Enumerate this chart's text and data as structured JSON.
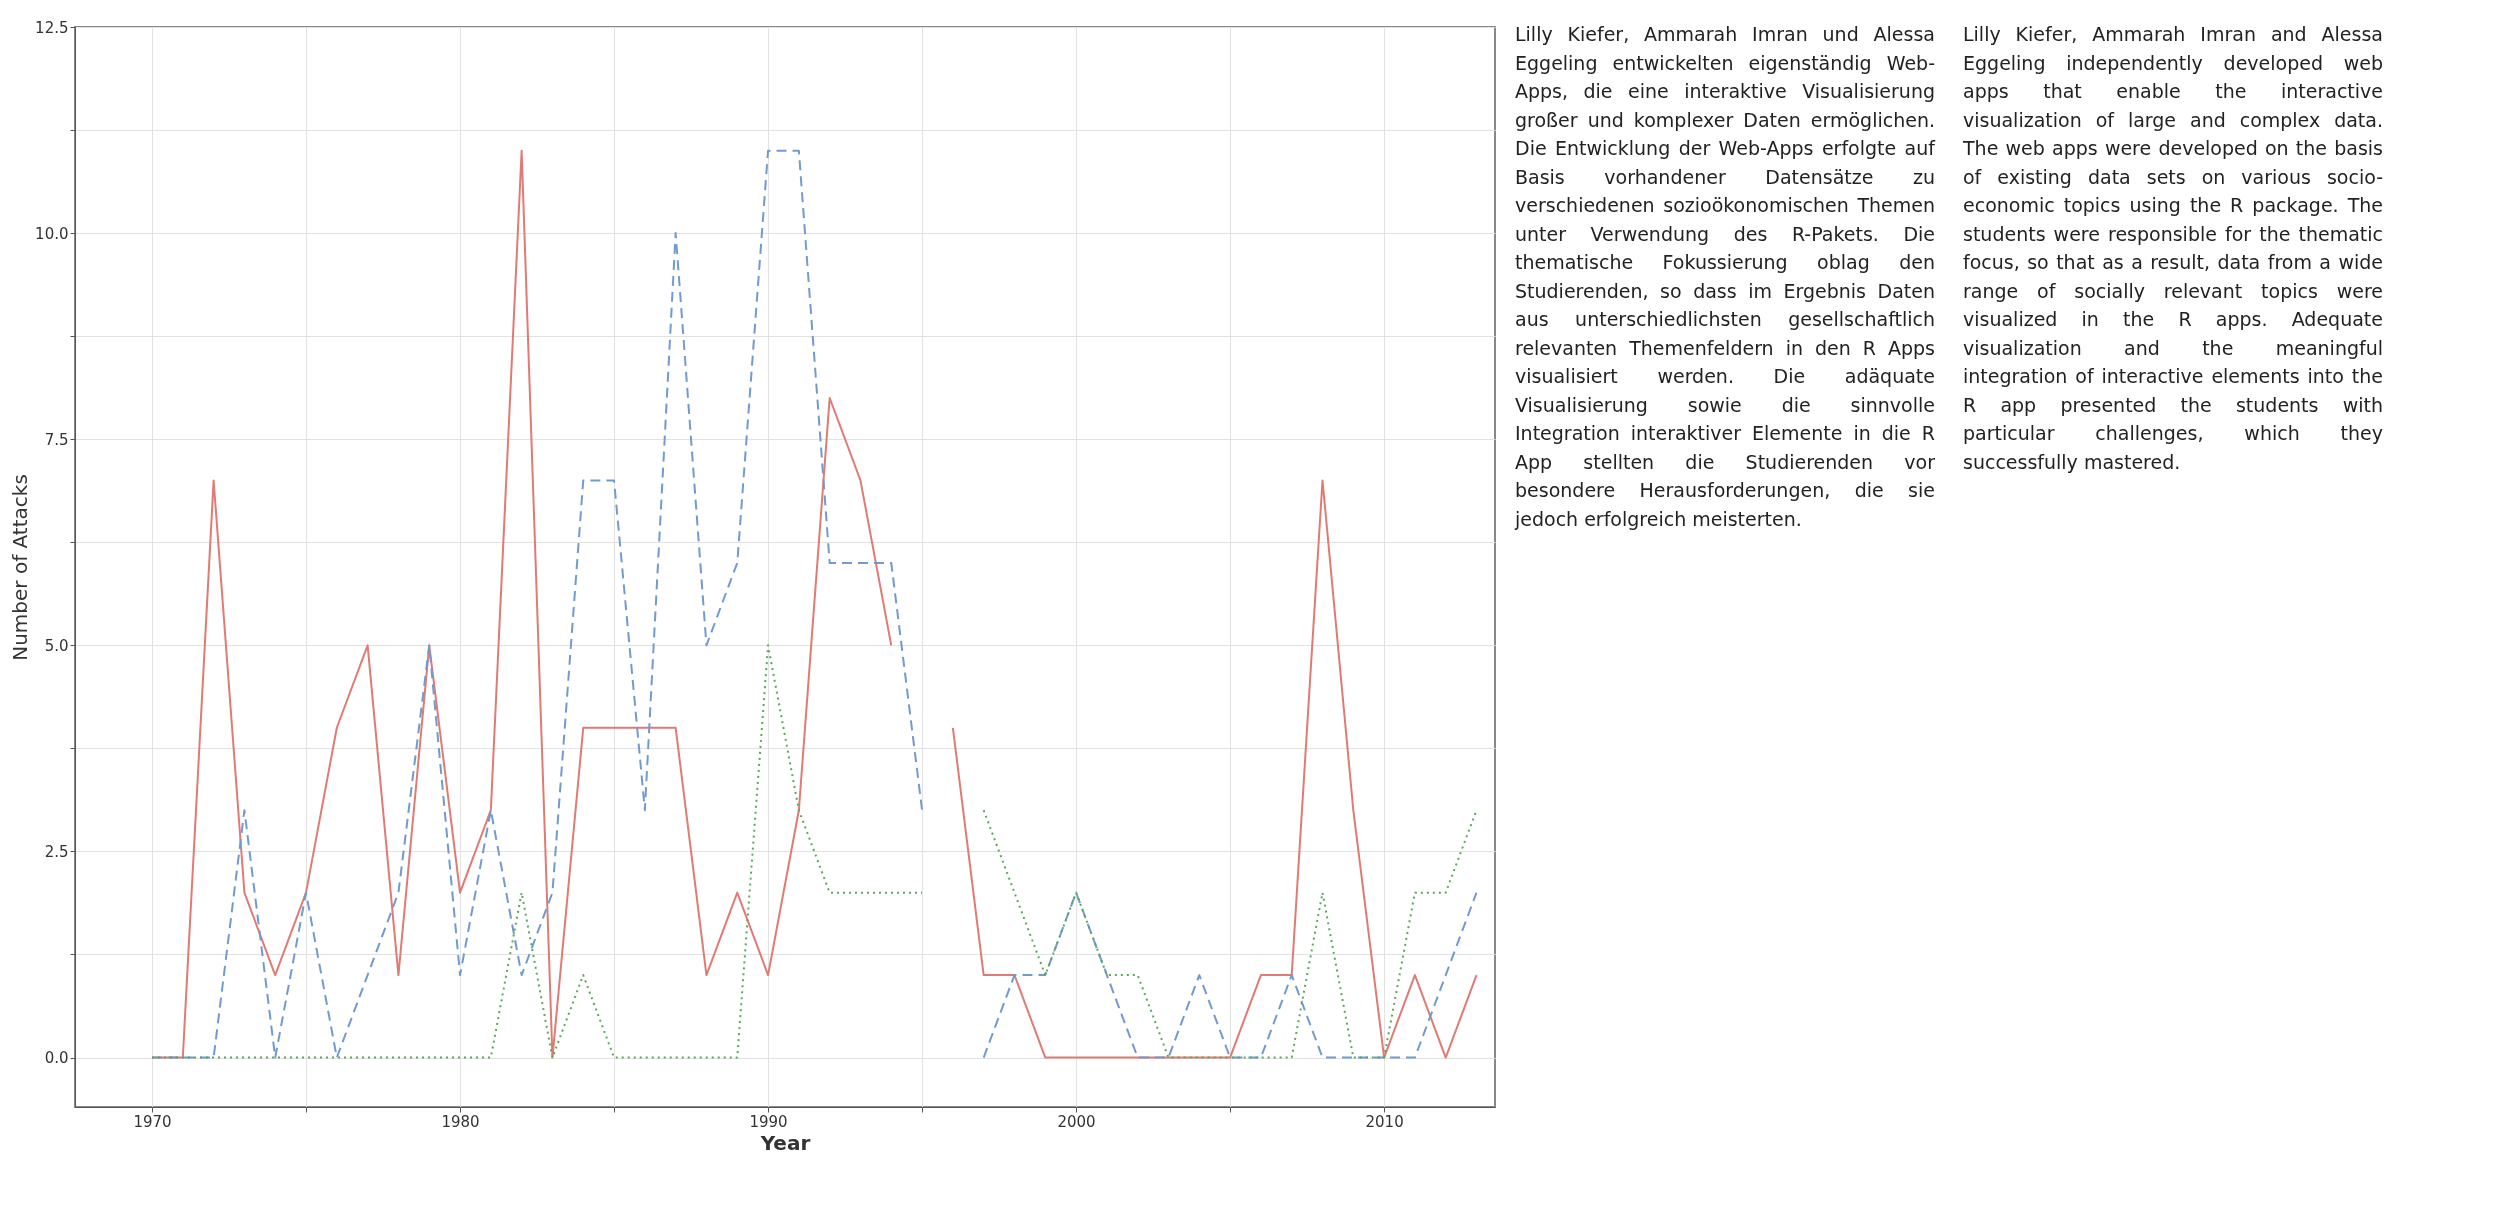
{
  "chart_data": {
    "type": "line",
    "xlabel": "Year",
    "ylabel": "Number of Attacks",
    "x": [
      1970,
      1971,
      1972,
      1973,
      1974,
      1975,
      1976,
      1977,
      1978,
      1979,
      1980,
      1981,
      1982,
      1983,
      1984,
      1985,
      1986,
      1987,
      1988,
      1989,
      1990,
      1991,
      1992,
      1993,
      1994,
      1995,
      1996,
      1997,
      1998,
      1999,
      2000,
      2001,
      2002,
      2003,
      2004,
      2005,
      2006,
      2007,
      2008,
      2009,
      2010,
      2011,
      2012,
      2013
    ],
    "series": [
      {
        "color": "#e07b74",
        "line_style": "solid",
        "values": [
          0,
          0,
          7,
          2,
          1,
          2,
          4,
          5,
          1,
          5,
          2,
          3,
          11,
          0,
          4,
          4,
          4,
          4,
          1,
          2,
          1,
          3,
          8,
          7,
          5,
          null,
          4,
          1,
          1,
          0,
          0,
          0,
          0,
          0,
          0,
          0,
          1,
          1,
          7,
          3,
          0,
          1,
          0,
          1
        ]
      },
      {
        "color": "#6f9bd1",
        "line_style": "dashed",
        "values": [
          0,
          0,
          0,
          3,
          0,
          2,
          0,
          1,
          2,
          5,
          1,
          3,
          1,
          2,
          7,
          7,
          3,
          10,
          5,
          6,
          11,
          11,
          6,
          6,
          6,
          3,
          null,
          0,
          1,
          1,
          2,
          1,
          0,
          0,
          1,
          0,
          0,
          1,
          0,
          0,
          0,
          0,
          1,
          2
        ]
      },
      {
        "color": "#5aa85a",
        "line_style": "dotted",
        "values": [
          0,
          0,
          0,
          0,
          0,
          0,
          0,
          0,
          0,
          0,
          0,
          0,
          2,
          0,
          1,
          0,
          0,
          0,
          0,
          0,
          5,
          3,
          2,
          2,
          2,
          2,
          null,
          3,
          2,
          1,
          2,
          1,
          1,
          0,
          0,
          0,
          0,
          0,
          2,
          0,
          0,
          2,
          2,
          3
        ]
      }
    ],
    "xlim": [
      1967.5,
      2013.6
    ],
    "ylim": [
      -0.6,
      12.5
    ],
    "xticks": [
      1970,
      {
        "value": 1975,
        "label": null
      },
      1980,
      {
        "value": 1985,
        "label": null
      },
      1990,
      {
        "value": 1995,
        "label": null
      },
      2000,
      {
        "value": 2005,
        "label": null
      },
      2010
    ],
    "yticks": [
      {
        "value": 0,
        "label": "0.0"
      },
      {
        "value": 1.25,
        "label": null
      },
      {
        "value": 2.5,
        "label": "2.5"
      },
      {
        "value": 3.75,
        "label": null
      },
      {
        "value": 5,
        "label": "5.0"
      },
      {
        "value": 6.25,
        "label": null
      },
      {
        "value": 7.5,
        "label": "7.5"
      },
      {
        "value": 8.75,
        "label": null
      },
      {
        "value": 10,
        "label": "10.0"
      },
      {
        "value": 11.25,
        "label": null
      },
      {
        "value": 12.5,
        "label": "12.5"
      }
    ],
    "grid": true,
    "annotations": [
      "Lilly Kiefer, Ammarah Imran und Alessa Eggeling entwickelten eigenständig Web-Apps, die eine interaktive Visualisierung großer und komplexer Daten ermöglichen. Die Entwicklung der Web-Apps erfolgte auf Basis vorhandener Datensätze zu verschiedenen sozioökonomischen Themen unter Verwendung des R-Pakets. Die thematische Fokussierung oblag den Studierenden, so dass im Ergebnis Daten aus unterschiedlichsten gesellschaftlich relevanten Themenfeldern in den R Apps visualisiert werden. Die adäquate Visualisierung sowie die sinnvolle Integration interaktiver Elemente in die R App stellten die Studierenden vor besondere Herausforderungen, die sie jedoch erfolgreich meisterten.",
      "Lilly Kiefer, Ammarah Imran and Alessa Eggeling independently developed web apps that enable the interactive visualization of large and complex data. The web apps were developed on the basis of existing data sets on various socio-economic topics using the R package. The students were responsible for the thematic focus, so that as a result, data from a wide range of socially relevant topics were visualized in the R apps. Adequate visualization and the meaningful integration of interactive elements into the R app presented the students with particular challenges, which they successfully mastered."
    ]
  }
}
